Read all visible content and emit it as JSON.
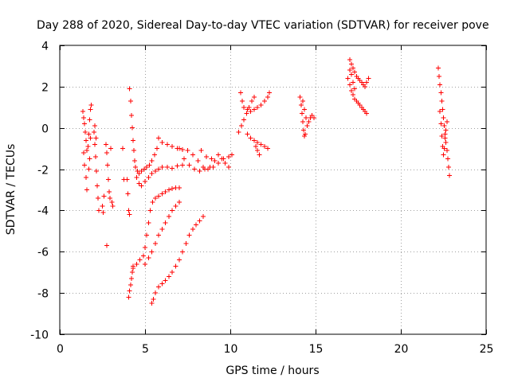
{
  "chart_data": {
    "type": "scatter",
    "title": "Day 288 of 2020, Sidereal Day-to-day VTEC variation (SDTVAR) for receiver pove",
    "xlabel": "GPS time / hours",
    "ylabel": "SDTVAR / TECUs",
    "xlim": [
      0,
      25
    ],
    "ylim": [
      -10,
      4
    ],
    "xticks": [
      0,
      5,
      10,
      15,
      20,
      25
    ],
    "xtick_labels": [
      "0",
      "5",
      "10",
      "15",
      "20",
      "25"
    ],
    "yticks": [
      -10,
      -8,
      -6,
      -4,
      -2,
      0,
      2,
      4
    ],
    "ytick_labels": [
      "-10",
      "-8",
      "-6",
      "-4",
      "-2",
      "0",
      "2",
      "4"
    ],
    "grid": true,
    "marker": "+",
    "color": "#ff0000",
    "series": [
      {
        "name": "SDTVAR",
        "points": [
          [
            1.35,
            0.8
          ],
          [
            1.4,
            0.5
          ],
          [
            1.45,
            0.2
          ],
          [
            1.5,
            -0.2
          ],
          [
            1.55,
            -0.6
          ],
          [
            1.6,
            -1.1
          ],
          [
            1.65,
            -0.9
          ],
          [
            1.7,
            -0.3
          ],
          [
            1.75,
            0.4
          ],
          [
            1.8,
            0.9
          ],
          [
            1.85,
            1.1
          ],
          [
            1.4,
            -1.2
          ],
          [
            1.45,
            -1.8
          ],
          [
            1.55,
            -2.4
          ],
          [
            1.6,
            -3.0
          ],
          [
            1.7,
            -2.0
          ],
          [
            1.75,
            -1.5
          ],
          [
            1.8,
            -0.5
          ],
          [
            2.0,
            -0.2
          ],
          [
            2.05,
            -0.8
          ],
          [
            2.1,
            -1.4
          ],
          [
            2.15,
            -2.1
          ],
          [
            2.2,
            -2.8
          ],
          [
            2.25,
            -3.4
          ],
          [
            2.3,
            -4.0
          ],
          [
            2.05,
            0.1
          ],
          [
            2.12,
            -0.5
          ],
          [
            2.5,
            -3.8
          ],
          [
            2.55,
            -4.1
          ],
          [
            2.6,
            -3.3
          ],
          [
            2.7,
            -0.8
          ],
          [
            2.75,
            -1.2
          ],
          [
            2.8,
            -1.8
          ],
          [
            2.85,
            -2.5
          ],
          [
            2.9,
            -3.1
          ],
          [
            2.95,
            -3.4
          ],
          [
            2.75,
            -5.7
          ],
          [
            3.0,
            -1.0
          ],
          [
            3.05,
            -3.6
          ],
          [
            3.1,
            -3.8
          ],
          [
            3.7,
            -1.0
          ],
          [
            3.75,
            -2.5
          ],
          [
            3.95,
            -2.5
          ],
          [
            4.0,
            -3.2
          ],
          [
            4.05,
            -4.0
          ],
          [
            4.1,
            -4.2
          ],
          [
            4.05,
            -8.2
          ],
          [
            4.1,
            -7.9
          ],
          [
            4.15,
            -7.6
          ],
          [
            4.2,
            -7.3
          ],
          [
            4.25,
            -7.0
          ],
          [
            4.3,
            -6.8
          ],
          [
            4.1,
            1.9
          ],
          [
            4.15,
            1.3
          ],
          [
            4.2,
            0.6
          ],
          [
            4.25,
            0.0
          ],
          [
            4.3,
            -0.6
          ],
          [
            4.35,
            -1.1
          ],
          [
            4.4,
            -1.6
          ],
          [
            4.45,
            -1.9
          ],
          [
            4.55,
            -2.1
          ],
          [
            4.65,
            -2.2
          ],
          [
            4.8,
            -2.1
          ],
          [
            4.95,
            -2.0
          ],
          [
            5.1,
            -1.9
          ],
          [
            5.25,
            -1.8
          ],
          [
            5.4,
            -1.6
          ],
          [
            5.55,
            -1.3
          ],
          [
            5.7,
            -1.0
          ],
          [
            4.5,
            -2.4
          ],
          [
            4.65,
            -2.7
          ],
          [
            4.8,
            -2.8
          ],
          [
            5.0,
            -2.6
          ],
          [
            5.2,
            -2.4
          ],
          [
            5.4,
            -2.2
          ],
          [
            5.6,
            -2.1
          ],
          [
            5.8,
            -2.0
          ],
          [
            6.0,
            -1.9
          ],
          [
            6.3,
            -1.9
          ],
          [
            6.6,
            -1.95
          ],
          [
            6.9,
            -1.85
          ],
          [
            7.2,
            -1.8
          ],
          [
            4.3,
            -6.7
          ],
          [
            4.5,
            -6.6
          ],
          [
            4.7,
            -6.4
          ],
          [
            4.9,
            -6.2
          ],
          [
            5.0,
            -5.8
          ],
          [
            5.1,
            -5.2
          ],
          [
            5.2,
            -4.6
          ],
          [
            5.3,
            -4.0
          ],
          [
            5.45,
            -3.6
          ],
          [
            5.6,
            -3.4
          ],
          [
            5.8,
            -3.3
          ],
          [
            6.0,
            -3.2
          ],
          [
            6.2,
            -3.1
          ],
          [
            6.4,
            -3.0
          ],
          [
            6.6,
            -2.95
          ],
          [
            6.8,
            -2.9
          ],
          [
            7.0,
            -2.9
          ],
          [
            5.0,
            -6.6
          ],
          [
            5.2,
            -6.3
          ],
          [
            5.4,
            -6.0
          ],
          [
            5.6,
            -5.6
          ],
          [
            5.8,
            -5.2
          ],
          [
            6.0,
            -4.9
          ],
          [
            6.2,
            -4.6
          ],
          [
            6.4,
            -4.3
          ],
          [
            6.6,
            -4.0
          ],
          [
            6.8,
            -3.8
          ],
          [
            7.0,
            -3.6
          ],
          [
            5.4,
            -8.5
          ],
          [
            5.5,
            -8.3
          ],
          [
            5.6,
            -8.0
          ],
          [
            5.8,
            -7.7
          ],
          [
            6.0,
            -7.55
          ],
          [
            6.2,
            -7.4
          ],
          [
            6.4,
            -7.2
          ],
          [
            6.6,
            -7.0
          ],
          [
            6.8,
            -6.7
          ],
          [
            7.0,
            -6.4
          ],
          [
            7.2,
            -6.0
          ],
          [
            7.4,
            -5.6
          ],
          [
            7.6,
            -5.2
          ],
          [
            7.8,
            -4.9
          ],
          [
            8.0,
            -4.7
          ],
          [
            8.2,
            -4.5
          ],
          [
            8.4,
            -4.3
          ],
          [
            5.8,
            -0.5
          ],
          [
            6.0,
            -0.7
          ],
          [
            6.3,
            -0.8
          ],
          [
            6.6,
            -0.9
          ],
          [
            6.9,
            -1.0
          ],
          [
            7.2,
            -1.05
          ],
          [
            7.5,
            -1.1
          ],
          [
            7.8,
            -1.3
          ],
          [
            8.1,
            -1.6
          ],
          [
            8.4,
            -1.9
          ],
          [
            8.7,
            -2.0
          ],
          [
            9.0,
            -1.9
          ],
          [
            9.3,
            -1.7
          ],
          [
            9.6,
            -1.5
          ],
          [
            9.9,
            -1.4
          ],
          [
            10.1,
            -1.3
          ],
          [
            7.0,
            -1.0
          ],
          [
            7.3,
            -1.5
          ],
          [
            7.6,
            -1.8
          ],
          [
            7.9,
            -2.0
          ],
          [
            8.2,
            -2.1
          ],
          [
            8.5,
            -2.0
          ],
          [
            8.8,
            -1.9
          ],
          [
            9.1,
            -1.6
          ],
          [
            9.3,
            -1.3
          ],
          [
            9.5,
            -1.5
          ],
          [
            9.7,
            -1.7
          ],
          [
            9.9,
            -1.9
          ],
          [
            8.3,
            -1.1
          ],
          [
            8.6,
            -1.4
          ],
          [
            8.9,
            -1.5
          ],
          [
            10.6,
            1.7
          ],
          [
            10.7,
            1.3
          ],
          [
            10.8,
            1.0
          ],
          [
            11.0,
            0.9
          ],
          [
            11.2,
            0.8
          ],
          [
            11.4,
            0.9
          ],
          [
            11.6,
            1.0
          ],
          [
            11.8,
            1.1
          ],
          [
            12.0,
            1.3
          ],
          [
            12.2,
            1.5
          ],
          [
            12.3,
            1.7
          ],
          [
            10.5,
            -0.2
          ],
          [
            10.65,
            0.1
          ],
          [
            10.8,
            0.4
          ],
          [
            10.95,
            0.7
          ],
          [
            11.1,
            1.0
          ],
          [
            11.25,
            1.3
          ],
          [
            11.4,
            1.5
          ],
          [
            11.0,
            -0.3
          ],
          [
            11.2,
            -0.5
          ],
          [
            11.4,
            -0.6
          ],
          [
            11.6,
            -0.7
          ],
          [
            11.8,
            -0.8
          ],
          [
            12.0,
            -0.9
          ],
          [
            12.2,
            -1.0
          ],
          [
            11.5,
            -0.9
          ],
          [
            11.6,
            -1.1
          ],
          [
            11.7,
            -1.3
          ],
          [
            14.1,
            1.5
          ],
          [
            14.15,
            1.1
          ],
          [
            14.2,
            0.7
          ],
          [
            14.25,
            0.3
          ],
          [
            14.3,
            -0.1
          ],
          [
            14.35,
            -0.4
          ],
          [
            14.4,
            -0.3
          ],
          [
            14.5,
            0.1
          ],
          [
            14.6,
            0.3
          ],
          [
            14.7,
            0.5
          ],
          [
            14.8,
            0.6
          ],
          [
            14.9,
            0.5
          ],
          [
            14.25,
            1.3
          ],
          [
            14.35,
            0.9
          ],
          [
            14.45,
            0.5
          ],
          [
            17.0,
            3.3
          ],
          [
            17.1,
            3.1
          ],
          [
            17.2,
            2.9
          ],
          [
            17.3,
            2.7
          ],
          [
            17.4,
            2.5
          ],
          [
            17.5,
            2.4
          ],
          [
            17.6,
            2.3
          ],
          [
            17.7,
            2.2
          ],
          [
            17.8,
            2.1
          ],
          [
            17.9,
            2.0
          ],
          [
            18.0,
            2.2
          ],
          [
            18.1,
            2.4
          ],
          [
            17.0,
            2.1
          ],
          [
            17.1,
            1.8
          ],
          [
            17.2,
            1.6
          ],
          [
            17.3,
            1.4
          ],
          [
            17.4,
            1.3
          ],
          [
            17.5,
            1.2
          ],
          [
            17.6,
            1.1
          ],
          [
            17.7,
            1.0
          ],
          [
            17.8,
            0.9
          ],
          [
            17.9,
            0.8
          ],
          [
            18.0,
            0.7
          ],
          [
            16.9,
            2.4
          ],
          [
            17.0,
            2.8
          ],
          [
            17.1,
            2.6
          ],
          [
            17.2,
            2.2
          ],
          [
            17.3,
            1.9
          ],
          [
            22.2,
            2.9
          ],
          [
            22.25,
            2.5
          ],
          [
            22.3,
            2.1
          ],
          [
            22.35,
            1.7
          ],
          [
            22.4,
            1.3
          ],
          [
            22.45,
            0.9
          ],
          [
            22.5,
            0.5
          ],
          [
            22.55,
            0.1
          ],
          [
            22.6,
            -0.3
          ],
          [
            22.65,
            -0.7
          ],
          [
            22.7,
            -1.1
          ],
          [
            22.75,
            -1.5
          ],
          [
            22.8,
            -1.9
          ],
          [
            22.85,
            -2.3
          ],
          [
            22.3,
            0.8
          ],
          [
            22.35,
            0.2
          ],
          [
            22.4,
            -0.4
          ],
          [
            22.45,
            -0.9
          ],
          [
            22.5,
            -1.3
          ],
          [
            22.55,
            -1.0
          ],
          [
            22.6,
            -0.5
          ],
          [
            22.65,
            -0.1
          ],
          [
            22.7,
            0.3
          ]
        ]
      }
    ]
  }
}
